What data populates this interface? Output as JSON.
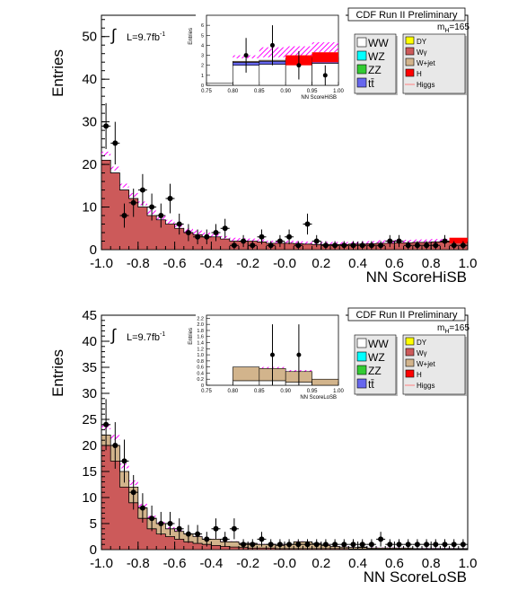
{
  "panels": [
    {
      "id": "top",
      "header": "CDF Run II Preliminary",
      "ylabel": "Entries",
      "xlabel": "NN ScoreHiSB",
      "lumi": "L=9.7fb",
      "lumi_sup": "-1",
      "mass_label": "m",
      "mass_sub": "H",
      "mass_value": "=165",
      "legend_left": [
        "WW",
        "WZ",
        "ZZ",
        "tt̄"
      ],
      "legend_right": [
        "DY",
        "Wγ",
        "W+jet",
        "H",
        "Higgs"
      ],
      "inset": {
        "ylabel": "Entries",
        "xlabel": "NN ScoreHiSB",
        "xticks": [
          "0.75",
          "0.80",
          "0.85",
          "0.90",
          "0.95",
          "1.00"
        ],
        "yticks": [
          "0",
          "1",
          "2",
          "3",
          "4",
          "5",
          "6"
        ],
        "xlim": [
          0.75,
          1.0
        ],
        "ylim": [
          0,
          7
        ],
        "bins": [
          0.75,
          0.8,
          0.85,
          0.9,
          0.95,
          1.0
        ],
        "stacks": {
          "ww": [
            0.2,
            2.0,
            2.1,
            2.1,
            2.2
          ],
          "wjet": [
            0.0,
            0.1,
            0.1,
            0.2,
            0.2
          ],
          "tt": [
            0.0,
            0.3,
            0.3,
            0.4,
            0.4
          ],
          "top": [
            0.3,
            2.7,
            2.8,
            3.0,
            3.3
          ],
          "sig": [
            0.3,
            3.0,
            3.8,
            3.9,
            4.3
          ]
        },
        "data_x": [
          0.825,
          0.875,
          0.925,
          0.975
        ],
        "data_y": [
          3,
          4,
          2,
          1
        ]
      },
      "chart_data": {
        "type": "bar",
        "xlim": [
          -1.0,
          1.0
        ],
        "ylim": [
          0,
          55
        ],
        "xticks": [
          "-1.0",
          "-0.8",
          "-0.6",
          "-0.4",
          "-0.2",
          "-0.0",
          "0.2",
          "0.4",
          "0.6",
          "0.8",
          "1.0"
        ],
        "yticks": [
          "0",
          "10",
          "20",
          "30",
          "40",
          "50"
        ],
        "bin_width": 0.05,
        "series": [
          {
            "name": "H",
            "color": "#cc5a5a",
            "values": [
              21,
              18,
              14,
              12,
              10,
              8,
              7,
              6,
              5,
              4,
              3.5,
              3,
              3,
              2.5,
              2,
              2,
              2,
              1.8,
              1.5,
              1.5,
              1.5,
              1.4,
              1.3,
              1.2,
              1.2,
              1.2,
              1.2,
              1.3,
              1.3,
              1.4,
              1.5,
              1.5,
              1.6,
              1.6,
              1.7,
              1.7,
              1.8,
              1.8,
              1.9,
              2.0
            ]
          },
          {
            "name": "DY",
            "color": "#ffff00",
            "values": [
              1.2,
              1.0,
              1.0,
              1.0,
              1.2,
              1.0,
              1.0,
              0.8,
              0.8,
              0.7,
              0.6,
              0.6,
              0.5,
              0.5,
              0.5,
              0.5,
              0.5,
              0.5,
              0.5,
              0.5,
              0.5,
              0.5,
              0.5,
              0.5,
              0.5,
              0.5,
              0.5,
              0.5,
              0.5,
              0.5,
              0.5,
              0.5,
              0.5,
              0.5,
              0.5,
              0.5,
              0.5,
              0.5,
              0.5,
              0.5
            ]
          },
          {
            "name": "Higgs",
            "color": "#ff00ff",
            "values": [
              23,
              19.5,
              15.5,
              13.3,
              11.3,
              9.2,
              8.0,
              7.0,
              5.8,
              5.0,
              4.5,
              4.0,
              3.7,
              3.2,
              2.8,
              2.7,
              2.6,
              2.4,
              2.1,
              2.1,
              2.1,
              2.0,
              1.9,
              1.8,
              1.8,
              1.8,
              1.8,
              1.9,
              1.9,
              2.0,
              2.2,
              2.2,
              2.3,
              2.3,
              2.4,
              2.4,
              2.5,
              2.5,
              2.6,
              2.7
            ]
          }
        ],
        "data": {
          "x": [
            -0.975,
            -0.925,
            -0.875,
            -0.825,
            -0.775,
            -0.725,
            -0.675,
            -0.625,
            -0.575,
            -0.525,
            -0.475,
            -0.425,
            -0.375,
            -0.325,
            -0.275,
            -0.225,
            -0.175,
            -0.125,
            -0.075,
            -0.025,
            0.025,
            0.075,
            0.125,
            0.175,
            0.225,
            0.275,
            0.325,
            0.375,
            0.425,
            0.475,
            0.525,
            0.575,
            0.625,
            0.675,
            0.725,
            0.775,
            0.825,
            0.875,
            0.925,
            0.975
          ],
          "y": [
            29,
            25,
            8,
            11,
            14,
            10,
            8,
            12,
            6,
            4,
            3,
            3,
            4,
            5,
            1,
            2,
            1,
            3,
            1,
            2,
            3,
            1,
            6,
            2,
            1,
            1,
            1,
            1,
            1,
            1,
            1,
            2,
            2,
            1,
            1,
            1,
            1,
            2,
            1,
            1
          ]
        }
      }
    },
    {
      "id": "bottom",
      "header": "CDF Run II Preliminary",
      "ylabel": "Entries",
      "xlabel": "NN ScoreLoSB",
      "lumi": "L=9.7fb",
      "lumi_sup": "-1",
      "mass_label": "m",
      "mass_sub": "H",
      "mass_value": "=165",
      "legend_left": [
        "WW",
        "WZ",
        "ZZ",
        "tt̄"
      ],
      "legend_right": [
        "DY",
        "Wγ",
        "W+jet",
        "H",
        "Higgs"
      ],
      "inset": {
        "ylabel": "Entries",
        "xlabel": "NN ScoreLoSB",
        "xticks": [
          "0.75",
          "0.80",
          "0.85",
          "0.90",
          "0.95",
          "1.00"
        ],
        "yticks": [
          "0",
          "0.2",
          "0.4",
          "0.6",
          "0.8",
          "1.0",
          "1.2",
          "1.4",
          "1.6",
          "1.8",
          "2.0",
          "2.2"
        ],
        "xlim": [
          0.75,
          1.0
        ],
        "ylim": [
          0,
          2.3
        ],
        "bins": [
          0.75,
          0.8,
          0.85,
          0.9,
          0.95,
          1.0
        ],
        "stacks": {
          "ww": [
            0.0,
            0.15,
            0.15,
            0.1,
            0.0
          ],
          "wjet": [
            0.0,
            0.45,
            0.4,
            0.35,
            0.2
          ],
          "tt": [
            0.0,
            0.0,
            0.0,
            0.0,
            0.0
          ],
          "top": [
            0.0,
            0.6,
            0.55,
            0.45,
            0.2
          ],
          "sig": [
            0.0,
            0.6,
            0.6,
            0.5,
            0.2
          ]
        },
        "data_x": [
          0.875,
          0.925
        ],
        "data_y": [
          1,
          1
        ]
      },
      "chart_data": {
        "type": "bar",
        "xlim": [
          -1.0,
          1.0
        ],
        "ylim": [
          0,
          45
        ],
        "xticks": [
          "-1.0",
          "-0.8",
          "-0.6",
          "-0.4",
          "-0.2",
          "-0.0",
          "0.2",
          "0.4",
          "0.6",
          "0.8",
          "1.0"
        ],
        "yticks": [
          "0",
          "5",
          "10",
          "15",
          "20",
          "25",
          "30",
          "35",
          "40",
          "45"
        ],
        "bin_width": 0.05,
        "series": [
          {
            "name": "H",
            "color": "#cc5a5a",
            "values": [
              20,
              17,
              12,
              9,
              6,
              4,
              3,
              2.5,
              2,
              1.5,
              1.2,
              1.0,
              0.8,
              0.6,
              0.5,
              0.4,
              0.3,
              0.3,
              0.3,
              0.2,
              0.2,
              0.2,
              0.2,
              0.2,
              0.2,
              0.2,
              0.2,
              0.1,
              0.1,
              0.1,
              0.1,
              0.1,
              0.1,
              0.1,
              0.1,
              0.1,
              0.1,
              0.1,
              0.1,
              0.1
            ]
          },
          {
            "name": "W+jet",
            "color": "#d2b48c",
            "values": [
              22,
              20,
              15,
              12,
              8,
              6,
              5,
              4,
              3.5,
              3,
              2.5,
              2,
              2,
              1.5,
              1.5,
              1.2,
              1.2,
              1.0,
              1.0,
              0.8,
              1.0,
              1.5,
              1.5,
              1.2,
              0.8,
              0.6,
              0.5,
              0.4,
              0.4,
              0.3,
              0.3,
              0.3,
              0.3,
              0.3,
              0.2,
              0.2,
              0.2,
              0.2,
              0.2,
              0.2
            ]
          },
          {
            "name": "DY",
            "color": "#ffff00",
            "values": [
              0.8,
              0.6,
              0.5,
              0.5,
              0.4,
              0.3,
              0.3,
              0.3,
              0.3,
              0.2,
              0.2,
              0.2,
              0.2,
              0.2,
              0.2,
              0.2,
              0.2,
              0.2,
              0.2,
              0.2,
              0.2,
              0.2,
              0.2,
              0.2,
              0.2,
              0.2,
              0.2,
              0.2,
              0.5,
              0.2,
              0.2,
              0.2,
              0.2,
              0.2,
              0.2,
              0.2,
              0.2,
              0.2,
              0.2,
              0.2
            ]
          },
          {
            "name": "Higgs",
            "color": "#ff00ff",
            "values": [
              24,
              22,
              16.5,
              13.3,
              8.8,
              6.5,
              5.3,
              4.3,
              3.7,
              3.2,
              2.6,
              2.1,
              2.1,
              1.6,
              1.6,
              1.3,
              1.3,
              1.1,
              1.1,
              0.9,
              1.1,
              1.6,
              1.6,
              1.3,
              0.9,
              0.7,
              0.6,
              0.5,
              0.5,
              0.4,
              0.4,
              0.4,
              0.4,
              0.4,
              0.3,
              0.3,
              0.3,
              0.3,
              0.3,
              0.3
            ]
          }
        ],
        "data": {
          "x": [
            -0.975,
            -0.925,
            -0.875,
            -0.825,
            -0.775,
            -0.725,
            -0.675,
            -0.625,
            -0.575,
            -0.525,
            -0.475,
            -0.425,
            -0.375,
            -0.325,
            -0.275,
            -0.225,
            -0.175,
            -0.125,
            -0.075,
            -0.025,
            0.025,
            0.075,
            0.125,
            0.175,
            0.225,
            0.275,
            0.325,
            0.375,
            0.425,
            0.475,
            0.525,
            0.575,
            0.625,
            0.675,
            0.725,
            0.775,
            0.825,
            0.875,
            0.925,
            0.975
          ],
          "y": [
            24,
            20,
            17,
            11,
            8,
            6,
            5,
            5,
            4,
            3,
            3,
            2,
            4,
            2,
            4,
            1,
            1,
            2,
            1,
            1,
            1,
            1,
            1,
            1,
            1,
            1,
            1,
            1,
            1,
            1,
            2,
            1,
            1,
            1,
            1,
            1,
            1,
            1,
            1,
            1
          ]
        }
      }
    }
  ],
  "colors": {
    "ww": "#ffffff",
    "wz": "#00ffff",
    "zz": "#33cc33",
    "tt": "#6666ee",
    "dy": "#ffff00",
    "wgamma": "#cc5a5a",
    "wjet": "#d2b48c",
    "h": "#ff0000",
    "higgs_line": "#ff8080",
    "higgs_hatch": "#ff00ff"
  }
}
